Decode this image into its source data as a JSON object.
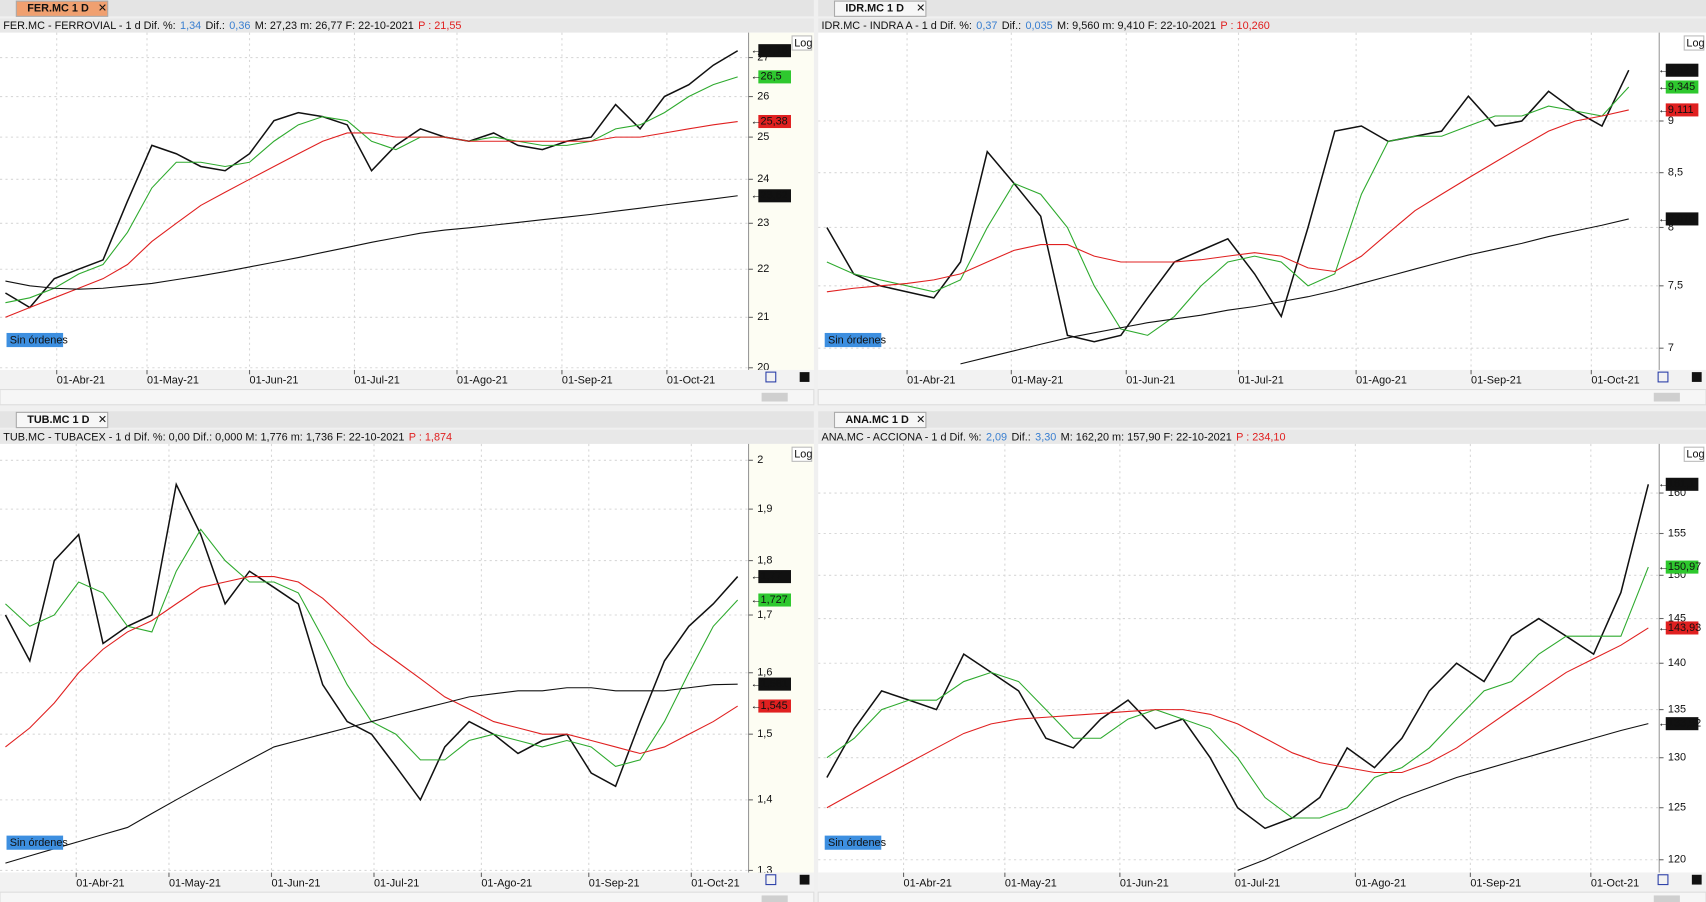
{
  "panels": [
    {
      "tab": "FER.MC 1 D",
      "active": true,
      "header": [
        {
          "text": "FER.MC - FERROVIAL -  1 d  Dif. %:",
          "color": "#111"
        },
        {
          "text": "1,34",
          "color": "#3a7fd0"
        },
        {
          "text": "Dif.:",
          "color": "#111"
        },
        {
          "text": "0,36",
          "color": "#3a7fd0"
        },
        {
          "text": "M: 27,23  m: 26,77  F: 22-10-2021",
          "color": "#111"
        },
        {
          "text": "P : 21,55",
          "color": "#e02020"
        }
      ],
      "note": "Sin órdenes",
      "log_label": "Log",
      "chart": {
        "type": "line",
        "log": true,
        "grid": true,
        "ylim": [
          20,
          27.6
        ],
        "yticks": [
          20,
          21,
          22,
          23,
          24,
          25,
          26,
          27
        ],
        "xticks": [
          {
            "value": 2.1,
            "label": "01-Abr-21"
          },
          {
            "value": 5.8,
            "label": "01-May-21"
          },
          {
            "value": 10.0,
            "label": "01-Jun-21"
          },
          {
            "value": 14.3,
            "label": "01-Jul-21"
          },
          {
            "value": 18.5,
            "label": "01-Ago-21"
          },
          {
            "value": 22.8,
            "label": "01-Sep-21"
          },
          {
            "value": 27.1,
            "label": "01-Oct-21"
          }
        ],
        "series": [
          {
            "color": "#111111",
            "values": [
              21.5,
              21.2,
              21.8,
              22.0,
              22.2,
              23.5,
              24.8,
              24.6,
              24.3,
              24.2,
              24.6,
              25.4,
              25.6,
              25.5,
              25.3,
              24.2,
              24.8,
              25.2,
              25.0,
              24.9,
              25.1,
              24.8,
              24.7,
              24.9,
              25.0,
              25.8,
              25.2,
              26.0,
              26.3,
              26.8,
              27.18
            ]
          },
          {
            "color": "#2eaa2e",
            "values": [
              21.3,
              21.4,
              21.6,
              21.9,
              22.1,
              22.8,
              23.8,
              24.4,
              24.4,
              24.3,
              24.4,
              24.9,
              25.3,
              25.5,
              25.4,
              24.9,
              24.7,
              25.0,
              25.0,
              24.9,
              25.0,
              24.9,
              24.8,
              24.8,
              24.9,
              25.2,
              25.3,
              25.6,
              26.0,
              26.3,
              26.5
            ]
          },
          {
            "color": "#e02020",
            "values": [
              21.0,
              21.2,
              21.4,
              21.6,
              21.8,
              22.1,
              22.6,
              23.0,
              23.4,
              23.7,
              24.0,
              24.3,
              24.6,
              24.9,
              25.1,
              25.1,
              25.0,
              25.0,
              25.0,
              24.9,
              24.9,
              24.9,
              24.9,
              24.9,
              24.9,
              25.0,
              25.0,
              25.1,
              25.2,
              25.3,
              25.38
            ]
          },
          {
            "color": "#111111",
            "values": [
              21.75,
              21.65,
              21.6,
              21.58,
              21.6,
              21.65,
              21.7,
              21.78,
              21.86,
              21.95,
              22.05,
              22.15,
              22.25,
              22.36,
              22.47,
              22.58,
              22.68,
              22.78,
              22.85,
              22.9,
              22.96,
              23.02,
              23.08,
              23.14,
              23.2,
              23.27,
              23.34,
              23.41,
              23.48,
              23.55,
              23.62
            ]
          }
        ],
        "tags": [
          {
            "value": 27.18,
            "label": "27,18",
            "color": "#111111"
          },
          {
            "value": 26.5,
            "label": "26,5",
            "color": "#2ec82e"
          },
          {
            "value": 25.38,
            "label": "25,38",
            "color": "#e02020"
          },
          {
            "value": 23.62,
            "label": "23,62",
            "color": "#111111"
          }
        ]
      }
    },
    {
      "tab": "IDR.MC 1 D",
      "active": false,
      "header": [
        {
          "text": "IDR.MC - INDRA A -  1 d  Dif. %:",
          "color": "#111"
        },
        {
          "text": "0,37",
          "color": "#3a7fd0"
        },
        {
          "text": "Dif.:",
          "color": "#111"
        },
        {
          "text": "0,035",
          "color": "#3a7fd0"
        },
        {
          "text": "M: 9,560  m: 9,410  F: 22-10-2021",
          "color": "#111"
        },
        {
          "text": "P : 10,260",
          "color": "#e02020"
        }
      ],
      "note": "Sin órdenes",
      "log_label": "Log",
      "chart": {
        "type": "line",
        "log": true,
        "grid": true,
        "ylim": [
          6.85,
          9.9
        ],
        "yticks": [
          7,
          {
            "value": 7.5,
            "label": "7,5"
          },
          8,
          {
            "value": 8.5,
            "label": "8,5"
          },
          9
        ],
        "xticks": [
          {
            "value": 3.0,
            "label": "01-Abr-21"
          },
          {
            "value": 6.9,
            "label": "01-May-21"
          },
          {
            "value": 11.2,
            "label": "01-Jun-21"
          },
          {
            "value": 15.4,
            "label": "01-Jul-21"
          },
          {
            "value": 19.8,
            "label": "01-Ago-21"
          },
          {
            "value": 24.1,
            "label": "01-Sep-21"
          },
          {
            "value": 28.6,
            "label": "01-Oct-21"
          }
        ],
        "series": [
          {
            "color": "#111111",
            "values": [
              8.0,
              7.6,
              7.5,
              7.45,
              7.4,
              7.7,
              8.7,
              8.4,
              8.1,
              7.1,
              7.05,
              7.1,
              7.4,
              7.7,
              7.8,
              7.9,
              7.6,
              7.25,
              8.0,
              8.9,
              8.95,
              8.8,
              8.85,
              8.9,
              9.25,
              8.95,
              9.0,
              9.3,
              9.1,
              8.95,
              9.52
            ]
          },
          {
            "color": "#2eaa2e",
            "values": [
              7.7,
              7.6,
              7.55,
              7.5,
              7.45,
              7.55,
              8.0,
              8.4,
              8.3,
              8.0,
              7.5,
              7.15,
              7.1,
              7.25,
              7.5,
              7.7,
              7.75,
              7.7,
              7.5,
              7.6,
              8.3,
              8.8,
              8.85,
              8.85,
              8.95,
              9.05,
              9.05,
              9.15,
              9.1,
              9.05,
              9.345
            ]
          },
          {
            "color": "#e02020",
            "values": [
              7.45,
              7.48,
              7.5,
              7.52,
              7.55,
              7.6,
              7.7,
              7.8,
              7.85,
              7.85,
              7.75,
              7.7,
              7.7,
              7.7,
              7.72,
              7.75,
              7.78,
              7.75,
              7.65,
              7.62,
              7.75,
              7.95,
              8.15,
              8.3,
              8.45,
              8.6,
              8.75,
              8.9,
              9.0,
              9.05,
              9.111
            ]
          },
          {
            "color": "#111111",
            "values": [
              null,
              null,
              null,
              null,
              null,
              6.88,
              6.93,
              6.98,
              7.03,
              7.08,
              7.12,
              7.16,
              7.2,
              7.23,
              7.26,
              7.3,
              7.33,
              7.37,
              7.41,
              7.46,
              7.52,
              7.58,
              7.64,
              7.7,
              7.76,
              7.81,
              7.86,
              7.92,
              7.97,
              8.02,
              8.076
            ]
          }
        ],
        "tags": [
          {
            "value": 9.52,
            "label": "9,52",
            "color": "#111111"
          },
          {
            "value": 9.345,
            "label": "9,345",
            "color": "#2ec82e"
          },
          {
            "value": 9.111,
            "label": "9,111",
            "color": "#e02020"
          },
          {
            "value": 8.076,
            "label": "8,076",
            "color": "#111111"
          }
        ]
      }
    },
    {
      "tab": "TUB.MC 1 D",
      "active": false,
      "header": [
        {
          "text": "TUB.MC - TUBACEX -  1 d  Dif. %: 0,00  Dif.: 0,000  M: 1,776  m: 1,736  F: 22-10-2021",
          "color": "#111"
        },
        {
          "text": "P : 1,874",
          "color": "#e02020"
        }
      ],
      "note": "Sin órdenes",
      "log_label": "Log",
      "chart": {
        "type": "line",
        "log": true,
        "grid": true,
        "ylim": [
          1.3,
          2.03
        ],
        "yticks": [
          {
            "value": 1.3,
            "label": "1,3"
          },
          {
            "value": 1.4,
            "label": "1,4"
          },
          {
            "value": 1.5,
            "label": "1,5"
          },
          {
            "value": 1.6,
            "label": "1,6"
          },
          {
            "value": 1.7,
            "label": "1,7"
          },
          {
            "value": 1.8,
            "label": "1,8"
          },
          {
            "value": 1.9,
            "label": "1,9"
          },
          2
        ],
        "xticks": [
          {
            "value": 2.9,
            "label": "01-Abr-21"
          },
          {
            "value": 6.7,
            "label": "01-May-21"
          },
          {
            "value": 10.9,
            "label": "01-Jun-21"
          },
          {
            "value": 15.1,
            "label": "01-Jul-21"
          },
          {
            "value": 19.5,
            "label": "01-Ago-21"
          },
          {
            "value": 23.9,
            "label": "01-Sep-21"
          },
          {
            "value": 28.1,
            "label": "01-Oct-21"
          }
        ],
        "series": [
          {
            "color": "#111111",
            "values": [
              1.7,
              1.62,
              1.8,
              1.85,
              1.65,
              1.68,
              1.7,
              1.95,
              1.85,
              1.72,
              1.78,
              1.75,
              1.72,
              1.58,
              1.52,
              1.5,
              1.45,
              1.4,
              1.48,
              1.52,
              1.5,
              1.47,
              1.49,
              1.5,
              1.44,
              1.42,
              1.52,
              1.62,
              1.68,
              1.72,
              1.77
            ]
          },
          {
            "color": "#2eaa2e",
            "values": [
              1.72,
              1.68,
              1.7,
              1.76,
              1.74,
              1.68,
              1.67,
              1.78,
              1.86,
              1.8,
              1.76,
              1.76,
              1.74,
              1.66,
              1.58,
              1.52,
              1.5,
              1.46,
              1.46,
              1.49,
              1.5,
              1.49,
              1.48,
              1.49,
              1.48,
              1.45,
              1.46,
              1.52,
              1.6,
              1.68,
              1.727
            ]
          },
          {
            "color": "#e02020",
            "values": [
              1.48,
              1.51,
              1.55,
              1.6,
              1.64,
              1.67,
              1.69,
              1.72,
              1.75,
              1.76,
              1.77,
              1.77,
              1.76,
              1.73,
              1.69,
              1.65,
              1.62,
              1.59,
              1.56,
              1.54,
              1.52,
              1.51,
              1.5,
              1.5,
              1.49,
              1.48,
              1.47,
              1.48,
              1.5,
              1.52,
              1.545
            ]
          },
          {
            "color": "#111111",
            "values": [
              1.31,
              1.32,
              1.33,
              1.34,
              1.35,
              1.36,
              1.38,
              1.4,
              1.42,
              1.44,
              1.46,
              1.48,
              1.49,
              1.5,
              1.51,
              1.52,
              1.53,
              1.54,
              1.55,
              1.56,
              1.565,
              1.57,
              1.57,
              1.575,
              1.575,
              1.57,
              1.57,
              1.57,
              1.575,
              1.58,
              1.581
            ]
          }
        ],
        "tags": [
          {
            "value": 1.77,
            "label": "1,77",
            "color": "#111111"
          },
          {
            "value": 1.727,
            "label": "1,727",
            "color": "#2ec82e"
          },
          {
            "value": 1.581,
            "label": "1,581",
            "color": "#111111"
          },
          {
            "value": 1.545,
            "label": "1,545",
            "color": "#e02020"
          }
        ]
      }
    },
    {
      "tab": "ANA.MC 1 D",
      "active": false,
      "header": [
        {
          "text": "ANA.MC - ACCIONA -  1 d  Dif. %:",
          "color": "#111"
        },
        {
          "text": "2,09",
          "color": "#3a7fd0"
        },
        {
          "text": "Dif.:",
          "color": "#111"
        },
        {
          "text": "3,30",
          "color": "#3a7fd0"
        },
        {
          "text": "M: 162,20  m: 157,90  F: 22-10-2021",
          "color": "#111"
        },
        {
          "text": "P : 234,10",
          "color": "#e02020"
        }
      ],
      "note": "Sin órdenes",
      "log_label": "Log",
      "chart": {
        "type": "line",
        "log": true,
        "grid": true,
        "ylim": [
          119,
          166
        ],
        "yticks": [
          120,
          125,
          130,
          135,
          140,
          145,
          150,
          155,
          160
        ],
        "xticks": [
          {
            "value": 2.8,
            "label": "01-Abr-21"
          },
          {
            "value": 6.5,
            "label": "01-May-21"
          },
          {
            "value": 10.7,
            "label": "01-Jun-21"
          },
          {
            "value": 14.9,
            "label": "01-Jul-21"
          },
          {
            "value": 19.3,
            "label": "01-Ago-21"
          },
          {
            "value": 23.5,
            "label": "01-Sep-21"
          },
          {
            "value": 27.9,
            "label": "01-Oct-21"
          }
        ],
        "series": [
          {
            "color": "#111111",
            "values": [
              128,
              133,
              137,
              136,
              135,
              141,
              139,
              137,
              132,
              131,
              134,
              136,
              133,
              134,
              130,
              125,
              123,
              124,
              126,
              131,
              129,
              132,
              137,
              140,
              138,
              143,
              145,
              143,
              141,
              148,
              161.1
            ]
          },
          {
            "color": "#2eaa2e",
            "values": [
              130,
              132,
              135,
              136,
              136,
              138,
              139,
              138,
              135,
              132,
              132,
              134,
              135,
              134,
              133,
              130,
              126,
              124,
              124,
              125,
              128,
              129,
              131,
              134,
              137,
              138,
              141,
              143,
              143,
              143,
              150.97
            ]
          },
          {
            "color": "#e02020",
            "values": [
              125,
              126.5,
              128,
              129.5,
              131,
              132.5,
              133.5,
              134,
              134.2,
              134.4,
              134.6,
              134.8,
              135,
              135,
              134.5,
              133.5,
              132,
              130.5,
              129.5,
              129,
              128.5,
              128.5,
              129.5,
              131,
              133,
              135,
              137,
              139,
              140.5,
              142,
              143.93
            ]
          },
          {
            "color": "#111111",
            "values": [
              null,
              null,
              null,
              null,
              null,
              null,
              null,
              null,
              null,
              null,
              null,
              null,
              null,
              null,
              null,
              119,
              120,
              121.2,
              122.4,
              123.6,
              124.8,
              126,
              127,
              128,
              128.8,
              129.6,
              130.4,
              131.2,
              132,
              132.8,
              133.52
            ]
          }
        ],
        "tags": [
          {
            "value": 161.1,
            "label": "161,1",
            "color": "#111111"
          },
          {
            "value": 150.97,
            "label": "150,97",
            "color": "#2ec82e"
          },
          {
            "value": 143.93,
            "label": "143,93",
            "color": "#e02020"
          },
          {
            "value": 133.52,
            "label": "133,52",
            "color": "#111111"
          }
        ]
      }
    }
  ]
}
